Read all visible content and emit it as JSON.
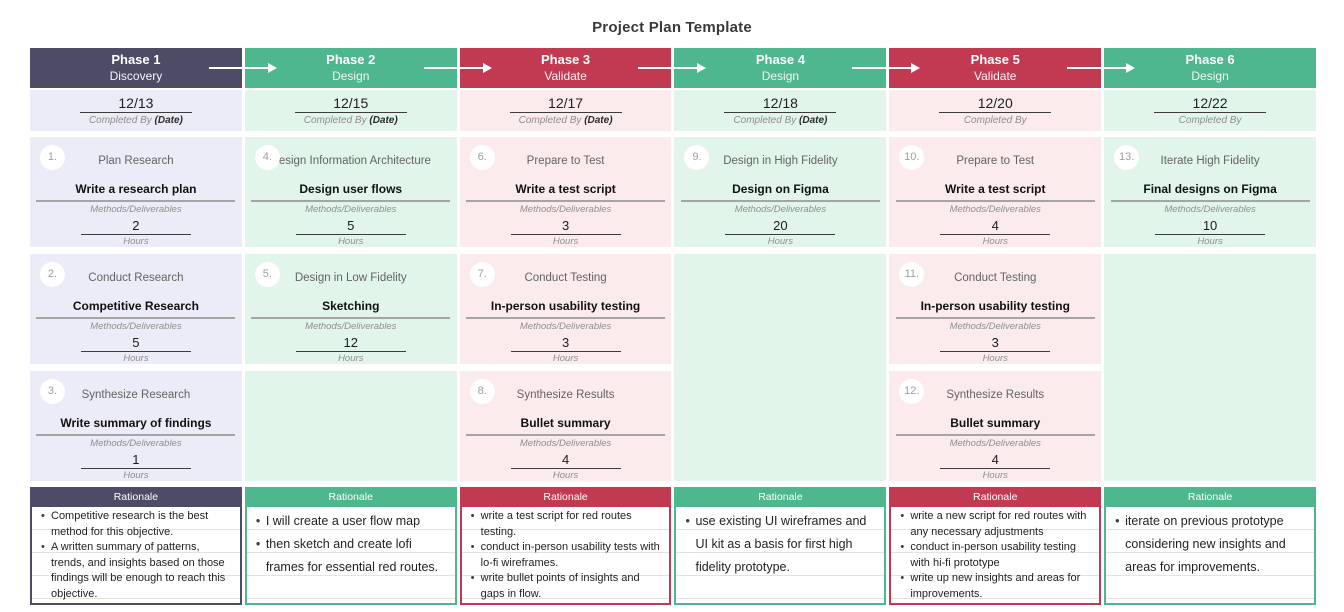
{
  "page_title": "Project Plan Template",
  "labels": {
    "rationale": "Rationale",
    "methods_deliverables": "Methods/Deliverables",
    "hours": "Hours"
  },
  "colors": {
    "phase_purple": "#4e4b66",
    "phase_green": "#4fb78e",
    "phase_red": "#c23a51",
    "tint_purple": "#ecebf8",
    "tint_green": "#e2f5eb",
    "tint_red": "#fcebed"
  },
  "phases": [
    {
      "name": "Phase 1",
      "subtitle": "Discovery",
      "theme": "purple",
      "date": "12/13",
      "completed_by": "Completed By",
      "date_suffix": "(Date)",
      "rationale_text": "small",
      "tasks": [
        {
          "num": "1.",
          "title": "Plan Research",
          "method": "Write a research plan",
          "hours": "2"
        },
        {
          "num": "2.",
          "title": "Conduct Research",
          "method": "Competitive Research",
          "hours": "5"
        },
        {
          "num": "3.",
          "title": "Synthesize Research",
          "method": "Write summary of findings",
          "hours": "1"
        }
      ],
      "rationale": [
        "Competitive research is the best method for this objective.",
        "A written summary of patterns, trends, and insights based on those findings will be enough to reach this objective."
      ]
    },
    {
      "name": "Phase 2",
      "subtitle": "Design",
      "theme": "green",
      "date": "12/15",
      "completed_by": "Completed By",
      "date_suffix": "(Date)",
      "rationale_text": "large",
      "tasks": [
        {
          "num": "4.",
          "title": "Design Information Architecture",
          "method": "Design user flows",
          "hours": "5"
        },
        {
          "num": "5.",
          "title": "Design in Low Fidelity",
          "method": "Sketching",
          "hours": "12"
        }
      ],
      "rationale": [
        "I will create a user flow map",
        "then sketch and create lofi frames for essential red routes."
      ]
    },
    {
      "name": "Phase 3",
      "subtitle": "Validate",
      "theme": "red",
      "date": "12/17",
      "completed_by": "Completed By",
      "date_suffix": "(Date)",
      "rationale_text": "small",
      "tasks": [
        {
          "num": "6.",
          "title": "Prepare to Test",
          "method": "Write a test script",
          "hours": "3"
        },
        {
          "num": "7.",
          "title": "Conduct Testing",
          "method": "In-person usability testing",
          "hours": "3"
        },
        {
          "num": "8.",
          "title": "Synthesize Results",
          "method": "Bullet summary",
          "hours": "4"
        }
      ],
      "rationale": [
        "write a test script for red routes testing.",
        "conduct in-person usability tests with lo-fi wireframes.",
        "write bullet points of insights and gaps in flow."
      ]
    },
    {
      "name": "Phase 4",
      "subtitle": "Design",
      "theme": "green",
      "date": "12/18",
      "completed_by": "Completed By",
      "date_suffix": "(Date)",
      "rationale_text": "large",
      "tasks": [
        {
          "num": "9.",
          "title": "Design in High Fidelity",
          "method": "Design on Figma",
          "hours": "20"
        }
      ],
      "rationale": [
        "use existing UI wireframes and UI kit as a basis for first high fidelity prototype."
      ]
    },
    {
      "name": "Phase 5",
      "subtitle": "Validate",
      "theme": "red",
      "date": "12/20",
      "completed_by": "Completed By",
      "date_suffix": "",
      "rationale_text": "small",
      "tasks": [
        {
          "num": "10.",
          "title": "Prepare to Test",
          "method": "Write a test script",
          "hours": "4"
        },
        {
          "num": "11.",
          "title": "Conduct Testing",
          "method": "In-person usability testing",
          "hours": "3"
        },
        {
          "num": "12.",
          "title": "Synthesize Results",
          "method": "Bullet summary",
          "hours": "4"
        }
      ],
      "rationale": [
        "write a new script for red routes with any necessary adjustments",
        "conduct in-person usability testing with hi-fi prototype",
        "write up new insights and areas for improvements."
      ]
    },
    {
      "name": "Phase 6",
      "subtitle": "Design",
      "theme": "green",
      "date": "12/22",
      "completed_by": "Completed By",
      "date_suffix": "",
      "rationale_text": "large",
      "tasks": [
        {
          "num": "13.",
          "title": "Iterate High Fidelity",
          "method": "Final designs on Figma",
          "hours": "10"
        }
      ],
      "rationale": [
        "iterate on previous prototype considering new insights and areas for improvements."
      ]
    }
  ]
}
